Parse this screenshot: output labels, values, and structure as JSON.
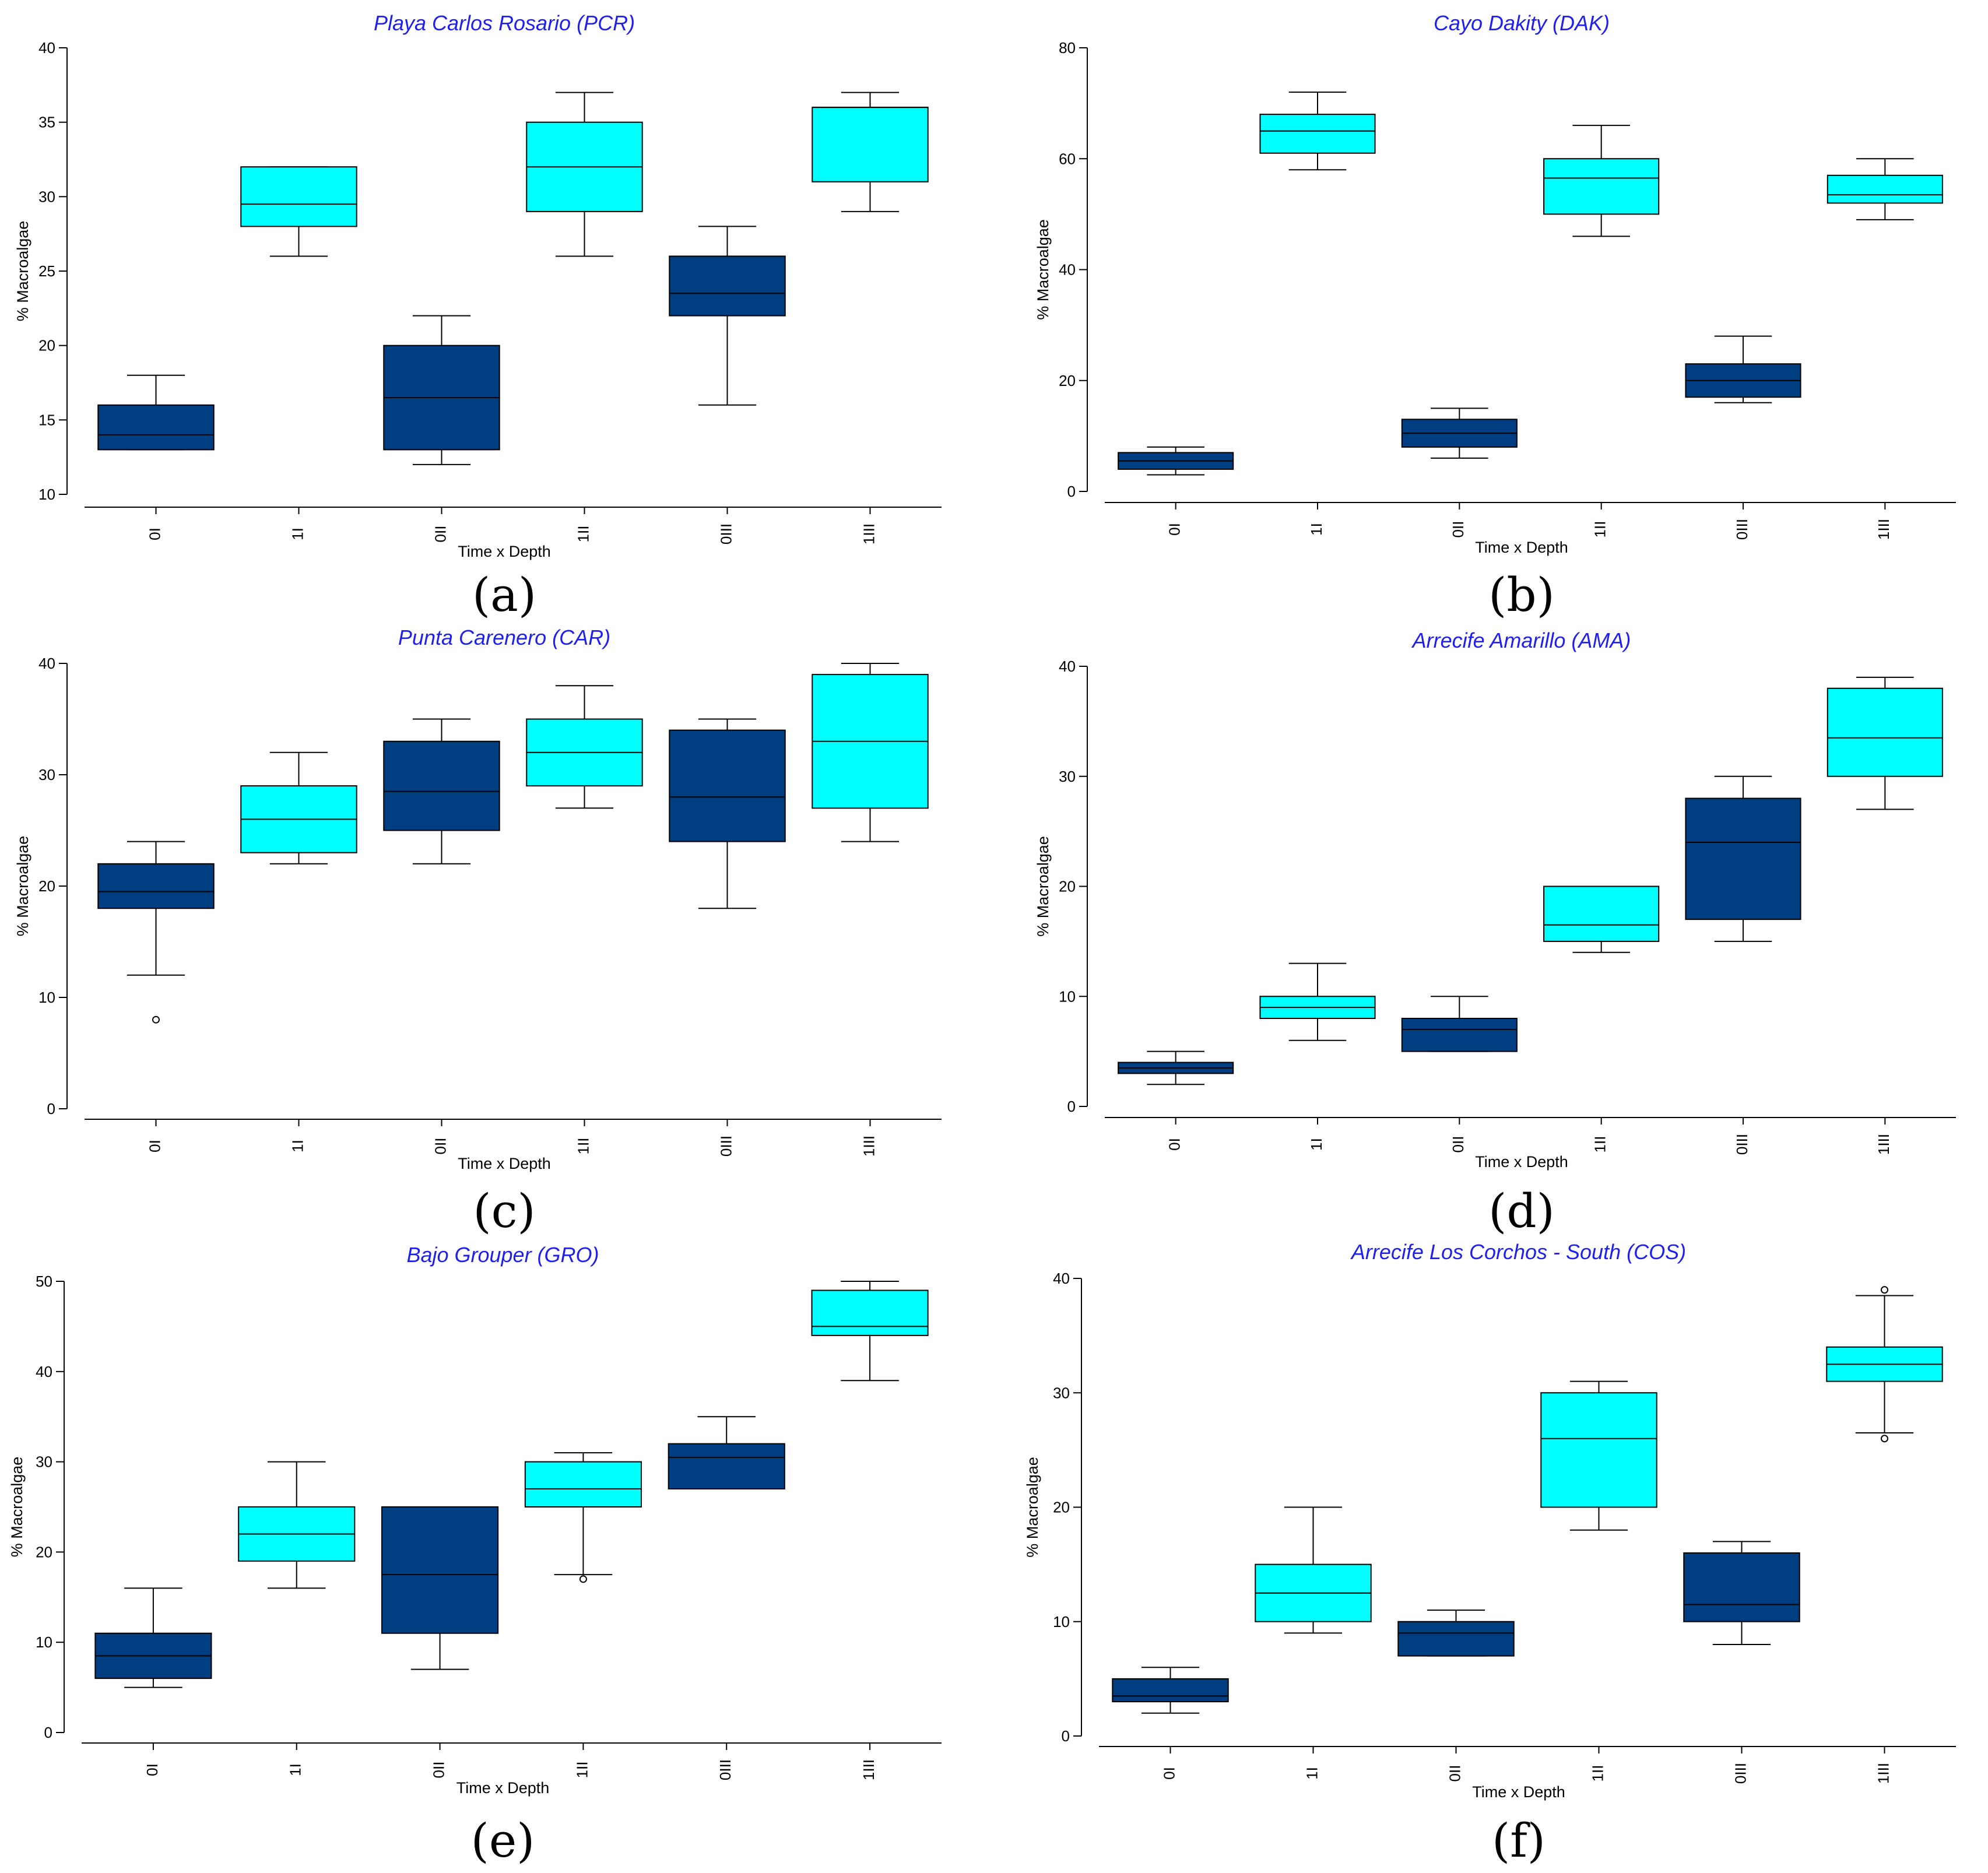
{
  "colors": {
    "depth0": "#003E82",
    "depth1": "#00FFFF",
    "title": "#1F1FF2",
    "axis": "#000000"
  },
  "chart_data": [
    {
      "type": "boxplot",
      "panel_letter": "(a)",
      "title": "Playa Carlos Rosario (PCR)",
      "xlabel": "Time x Depth",
      "ylabel": "% Macroalgae",
      "categories": [
        "0I",
        "1I",
        "0II",
        "1II",
        "0III",
        "1III"
      ],
      "ylim": [
        10,
        40
      ],
      "yticks": [
        10,
        15,
        20,
        25,
        30,
        35,
        40
      ],
      "boxes": [
        {
          "group": "0I",
          "min": 13,
          "q1": 13,
          "median": 14,
          "q3": 16,
          "max": 18,
          "outliers": []
        },
        {
          "group": "1I",
          "min": 26,
          "q1": 28,
          "median": 29.5,
          "q3": 32,
          "max": 32,
          "outliers": []
        },
        {
          "group": "0II",
          "min": 12,
          "q1": 13,
          "median": 16.5,
          "q3": 20,
          "max": 22,
          "outliers": []
        },
        {
          "group": "1II",
          "min": 26,
          "q1": 29,
          "median": 32,
          "q3": 35,
          "max": 37,
          "outliers": []
        },
        {
          "group": "0III",
          "min": 16,
          "q1": 22,
          "median": 23.5,
          "q3": 26,
          "max": 28,
          "outliers": []
        },
        {
          "group": "1III",
          "min": 29,
          "q1": 31,
          "median": 36,
          "q3": 36,
          "max": 37,
          "outliers": []
        }
      ]
    },
    {
      "type": "boxplot",
      "panel_letter": "(b)",
      "title": "Cayo Dakity (DAK)",
      "xlabel": "Time x Depth",
      "ylabel": "% Macroalgae",
      "categories": [
        "0I",
        "1I",
        "0II",
        "1II",
        "0III",
        "1III"
      ],
      "ylim": [
        0,
        80
      ],
      "yticks": [
        0,
        20,
        40,
        60,
        80
      ],
      "boxes": [
        {
          "group": "0I",
          "min": 3,
          "q1": 4,
          "median": 5.5,
          "q3": 7,
          "max": 8,
          "outliers": []
        },
        {
          "group": "1I",
          "min": 58,
          "q1": 61,
          "median": 65,
          "q3": 68,
          "max": 72,
          "outliers": []
        },
        {
          "group": "0II",
          "min": 6,
          "q1": 8,
          "median": 10.5,
          "q3": 13,
          "max": 15,
          "outliers": []
        },
        {
          "group": "1II",
          "min": 46,
          "q1": 50,
          "median": 56.5,
          "q3": 60,
          "max": 66,
          "outliers": []
        },
        {
          "group": "0III",
          "min": 16,
          "q1": 17,
          "median": 20,
          "q3": 23,
          "max": 28,
          "outliers": []
        },
        {
          "group": "1III",
          "min": 49,
          "q1": 52,
          "median": 53.5,
          "q3": 57,
          "max": 60,
          "outliers": []
        }
      ]
    },
    {
      "type": "boxplot",
      "panel_letter": "(c)",
      "title": "Punta Carenero (CAR)",
      "xlabel": "Time x Depth",
      "ylabel": "% Macroalgae",
      "categories": [
        "0I",
        "1I",
        "0II",
        "1II",
        "0III",
        "1III"
      ],
      "ylim": [
        0,
        40
      ],
      "yticks": [
        0,
        10,
        20,
        30,
        40
      ],
      "boxes": [
        {
          "group": "0I",
          "min": 12,
          "q1": 18,
          "median": 19.5,
          "q3": 22,
          "max": 24,
          "outliers": [
            8
          ]
        },
        {
          "group": "1I",
          "min": 22,
          "q1": 23,
          "median": 26,
          "q3": 29,
          "max": 32,
          "outliers": []
        },
        {
          "group": "0II",
          "min": 22,
          "q1": 25,
          "median": 28.5,
          "q3": 33,
          "max": 35,
          "outliers": []
        },
        {
          "group": "1II",
          "min": 27,
          "q1": 29,
          "median": 32,
          "q3": 35,
          "max": 38,
          "outliers": []
        },
        {
          "group": "0III",
          "min": 18,
          "q1": 24,
          "median": 28,
          "q3": 34,
          "max": 35,
          "outliers": []
        },
        {
          "group": "1III",
          "min": 24,
          "q1": 27,
          "median": 33,
          "q3": 39,
          "max": 40,
          "outliers": []
        }
      ]
    },
    {
      "type": "boxplot",
      "panel_letter": "(d)",
      "title": "Arrecife Amarillo (AMA)",
      "xlabel": "Time x Depth",
      "ylabel": "% Macroalgae",
      "categories": [
        "0I",
        "1I",
        "0II",
        "1II",
        "0III",
        "1III"
      ],
      "ylim": [
        0,
        40
      ],
      "yticks": [
        0,
        10,
        20,
        30,
        40
      ],
      "boxes": [
        {
          "group": "0I",
          "min": 2,
          "q1": 3,
          "median": 3.5,
          "q3": 4,
          "max": 5,
          "outliers": []
        },
        {
          "group": "1I",
          "min": 6,
          "q1": 8,
          "median": 9,
          "q3": 10,
          "max": 13,
          "outliers": []
        },
        {
          "group": "0II",
          "min": 5,
          "q1": 5,
          "median": 7,
          "q3": 8,
          "max": 10,
          "outliers": []
        },
        {
          "group": "1II",
          "min": 14,
          "q1": 15,
          "median": 16.5,
          "q3": 20,
          "max": 20,
          "outliers": []
        },
        {
          "group": "0III",
          "min": 15,
          "q1": 17,
          "median": 24,
          "q3": 28,
          "max": 30,
          "outliers": []
        },
        {
          "group": "1III",
          "min": 27,
          "q1": 30,
          "median": 33.5,
          "q3": 38,
          "max": 39,
          "outliers": []
        }
      ]
    },
    {
      "type": "boxplot",
      "panel_letter": "(e)",
      "title": "Bajo Grouper (GRO)",
      "xlabel": "Time x Depth",
      "ylabel": "% Macroalgae",
      "categories": [
        "0I",
        "1I",
        "0II",
        "1II",
        "0III",
        "1III"
      ],
      "ylim": [
        0,
        50
      ],
      "yticks": [
        0,
        10,
        20,
        30,
        40,
        50
      ],
      "boxes": [
        {
          "group": "0I",
          "min": 5,
          "q1": 6,
          "median": 8.5,
          "q3": 11,
          "max": 16,
          "outliers": []
        },
        {
          "group": "1I",
          "min": 16,
          "q1": 19,
          "median": 22,
          "q3": 25,
          "max": 30,
          "outliers": []
        },
        {
          "group": "0II",
          "min": 7,
          "q1": 11,
          "median": 17.5,
          "q3": 25,
          "max": 25,
          "outliers": []
        },
        {
          "group": "1II",
          "min": 17.5,
          "q1": 25,
          "median": 27,
          "q3": 30,
          "max": 31,
          "outliers": [
            17
          ]
        },
        {
          "group": "0III",
          "min": 27,
          "q1": 27,
          "median": 30.5,
          "q3": 32,
          "max": 35,
          "outliers": []
        },
        {
          "group": "1III",
          "min": 39,
          "q1": 44,
          "median": 45,
          "q3": 49,
          "max": 50,
          "outliers": []
        }
      ]
    },
    {
      "type": "boxplot",
      "panel_letter": "(f)",
      "title": "Arrecife Los Corchos - South (COS)",
      "xlabel": "Time x Depth",
      "ylabel": "% Macroalgae",
      "categories": [
        "0I",
        "1I",
        "0II",
        "1II",
        "0III",
        "1III"
      ],
      "ylim": [
        0,
        40
      ],
      "yticks": [
        0,
        10,
        20,
        30,
        40
      ],
      "boxes": [
        {
          "group": "0I",
          "min": 2,
          "q1": 3,
          "median": 3.5,
          "q3": 5,
          "max": 6,
          "outliers": []
        },
        {
          "group": "1I",
          "min": 9,
          "q1": 10,
          "median": 12.5,
          "q3": 15,
          "max": 20,
          "outliers": []
        },
        {
          "group": "0II",
          "min": 7,
          "q1": 7,
          "median": 9,
          "q3": 10,
          "max": 11,
          "outliers": []
        },
        {
          "group": "1II",
          "min": 18,
          "q1": 20,
          "median": 26,
          "q3": 30,
          "max": 31,
          "outliers": []
        },
        {
          "group": "0III",
          "min": 8,
          "q1": 10,
          "median": 11.5,
          "q3": 16,
          "max": 17,
          "outliers": []
        },
        {
          "group": "1III",
          "min": 26.5,
          "q1": 31,
          "median": 32.5,
          "q3": 34,
          "max": 38.5,
          "outliers": [
            39,
            26
          ]
        }
      ]
    }
  ]
}
